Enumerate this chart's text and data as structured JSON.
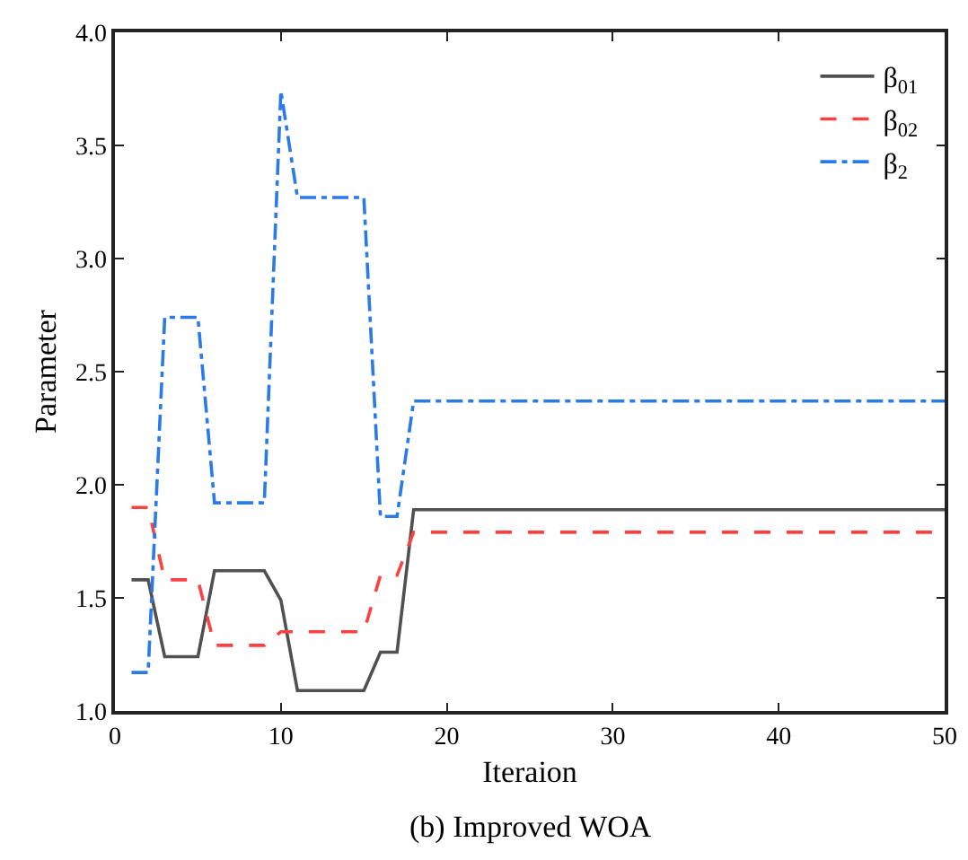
{
  "chart_data": {
    "type": "line",
    "xlabel": "Iteraion",
    "ylabel": "Parameter",
    "annotations": [
      "(b) Improved WOA"
    ],
    "x": [
      1,
      2,
      3,
      4,
      5,
      6,
      7,
      8,
      9,
      10,
      11,
      12,
      13,
      14,
      15,
      16,
      17,
      18,
      19,
      20,
      21,
      22,
      23,
      24,
      25,
      26,
      27,
      28,
      29,
      30,
      31,
      32,
      33,
      34,
      35,
      36,
      37,
      38,
      39,
      40,
      41,
      42,
      43,
      44,
      45,
      46,
      47,
      48,
      49,
      50
    ],
    "xlim": [
      0,
      50
    ],
    "xticks": [
      0,
      10,
      20,
      30,
      40,
      50
    ],
    "ylim": [
      1,
      4
    ],
    "yticks": [
      {
        "value": 1,
        "label": "1.0"
      },
      {
        "value": 1.5,
        "label": "1.5"
      },
      {
        "value": 2,
        "label": "2.0"
      },
      {
        "value": 2.5,
        "label": "2.5"
      },
      {
        "value": 3,
        "label": "3.0"
      },
      {
        "value": 3.5,
        "label": "3.5"
      },
      {
        "value": 4,
        "label": "4.0"
      }
    ],
    "grid": false,
    "legend": "top right",
    "marker": "none",
    "series": [
      {
        "name": "β$_{01}$",
        "color": "#505050",
        "line_style": "solid",
        "values": [
          1.58,
          1.58,
          1.24,
          1.24,
          1.24,
          1.62,
          1.62,
          1.62,
          1.62,
          1.49,
          1.09,
          1.09,
          1.09,
          1.09,
          1.09,
          1.26,
          1.26,
          1.89,
          1.89,
          1.89,
          1.89,
          1.89,
          1.89,
          1.89,
          1.89,
          1.89,
          1.89,
          1.89,
          1.89,
          1.89,
          1.89,
          1.89,
          1.89,
          1.89,
          1.89,
          1.89,
          1.89,
          1.89,
          1.89,
          1.89,
          1.89,
          1.89,
          1.89,
          1.89,
          1.89,
          1.89,
          1.89,
          1.89,
          1.89,
          1.89
        ]
      },
      {
        "name": "β$_{02}$",
        "color": "#ff4040",
        "line_style": "dashed",
        "values": [
          1.9,
          1.9,
          1.58,
          1.58,
          1.58,
          1.29,
          1.29,
          1.29,
          1.29,
          1.35,
          1.35,
          1.35,
          1.35,
          1.35,
          1.35,
          1.6,
          1.6,
          1.79,
          1.79,
          1.79,
          1.79,
          1.79,
          1.79,
          1.79,
          1.79,
          1.79,
          1.79,
          1.79,
          1.79,
          1.79,
          1.79,
          1.79,
          1.79,
          1.79,
          1.79,
          1.79,
          1.79,
          1.79,
          1.79,
          1.79,
          1.79,
          1.79,
          1.79,
          1.79,
          1.79,
          1.79,
          1.79,
          1.79,
          1.79,
          1.79
        ]
      },
      {
        "name": "β$_{2}$",
        "color": "#2a7be8",
        "line_style": "dashdot",
        "values": [
          1.17,
          1.17,
          2.74,
          2.74,
          2.74,
          1.92,
          1.92,
          1.92,
          1.92,
          3.74,
          3.27,
          3.27,
          3.27,
          3.27,
          3.27,
          1.86,
          1.86,
          2.37,
          2.37,
          2.37,
          2.37,
          2.37,
          2.37,
          2.37,
          2.37,
          2.37,
          2.37,
          2.37,
          2.37,
          2.37,
          2.37,
          2.37,
          2.37,
          2.37,
          2.37,
          2.37,
          2.37,
          2.37,
          2.37,
          2.37,
          2.37,
          2.37,
          2.37,
          2.37,
          2.37,
          2.37,
          2.37,
          2.37,
          2.37,
          2.37
        ]
      }
    ]
  }
}
